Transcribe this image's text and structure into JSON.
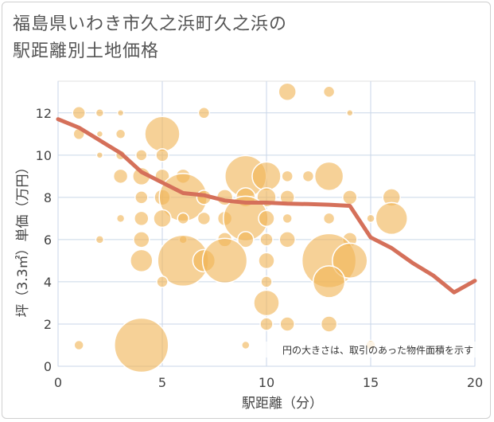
{
  "chart_data": {
    "type": "scatter",
    "title_line1": "福島県いわき市久之浜町久之浜の",
    "title_line2": "駅距離別土地価格",
    "xlabel": "駅距離（分）",
    "ylabel": "坪（3.3㎡）単価（万円）",
    "note": "円の大きさは、取引のあった物件面積を示す",
    "xlim": [
      0,
      20
    ],
    "ylim": [
      0,
      13.5
    ],
    "xticks": [
      "0",
      "5",
      "10",
      "15",
      "20"
    ],
    "yticks": [
      "0",
      "2",
      "4",
      "6",
      "8",
      "10",
      "12"
    ],
    "grid": true,
    "bubble_color": "#f0b457",
    "line_color": "#d5705a",
    "points": [
      {
        "x": 1,
        "y": 12,
        "s": 8
      },
      {
        "x": 2,
        "y": 12,
        "s": 5
      },
      {
        "x": 3,
        "y": 12,
        "s": 4
      },
      {
        "x": 1,
        "y": 11,
        "s": 7
      },
      {
        "x": 2,
        "y": 11,
        "s": 4
      },
      {
        "x": 3,
        "y": 11,
        "s": 6
      },
      {
        "x": 5,
        "y": 11,
        "s": 22
      },
      {
        "x": 7,
        "y": 12,
        "s": 7
      },
      {
        "x": 11,
        "y": 13,
        "s": 11
      },
      {
        "x": 13,
        "y": 13,
        "s": 7
      },
      {
        "x": 14,
        "y": 12,
        "s": 4
      },
      {
        "x": 2,
        "y": 10,
        "s": 4
      },
      {
        "x": 3,
        "y": 10,
        "s": 6
      },
      {
        "x": 4,
        "y": 10,
        "s": 7
      },
      {
        "x": 5,
        "y": 10,
        "s": 8
      },
      {
        "x": 3,
        "y": 9,
        "s": 9
      },
      {
        "x": 4,
        "y": 9,
        "s": 11
      },
      {
        "x": 5,
        "y": 9,
        "s": 9
      },
      {
        "x": 6,
        "y": 9,
        "s": 9
      },
      {
        "x": 4,
        "y": 8,
        "s": 8
      },
      {
        "x": 5,
        "y": 8,
        "s": 10
      },
      {
        "x": 6,
        "y": 8,
        "s": 30
      },
      {
        "x": 7,
        "y": 8,
        "s": 9
      },
      {
        "x": 8,
        "y": 8,
        "s": 10
      },
      {
        "x": 9,
        "y": 9,
        "s": 26
      },
      {
        "x": 9,
        "y": 8,
        "s": 12
      },
      {
        "x": 10,
        "y": 9,
        "s": 18
      },
      {
        "x": 10,
        "y": 8,
        "s": 12
      },
      {
        "x": 11,
        "y": 9,
        "s": 7
      },
      {
        "x": 11,
        "y": 8,
        "s": 9
      },
      {
        "x": 12,
        "y": 9,
        "s": 7
      },
      {
        "x": 13,
        "y": 9,
        "s": 18
      },
      {
        "x": 14,
        "y": 8,
        "s": 9
      },
      {
        "x": 3,
        "y": 7,
        "s": 5
      },
      {
        "x": 4,
        "y": 7,
        "s": 9
      },
      {
        "x": 5,
        "y": 7,
        "s": 11
      },
      {
        "x": 6,
        "y": 7,
        "s": 7
      },
      {
        "x": 7,
        "y": 7,
        "s": 8
      },
      {
        "x": 8,
        "y": 7,
        "s": 9
      },
      {
        "x": 9,
        "y": 7,
        "s": 28
      },
      {
        "x": 10,
        "y": 7,
        "s": 10
      },
      {
        "x": 11,
        "y": 7,
        "s": 6
      },
      {
        "x": 13,
        "y": 7,
        "s": 7
      },
      {
        "x": 15,
        "y": 7,
        "s": 5
      },
      {
        "x": 16,
        "y": 8,
        "s": 11
      },
      {
        "x": 16,
        "y": 7,
        "s": 20
      },
      {
        "x": 2,
        "y": 6,
        "s": 5
      },
      {
        "x": 4,
        "y": 6,
        "s": 10
      },
      {
        "x": 6,
        "y": 6,
        "s": 5
      },
      {
        "x": 8,
        "y": 6,
        "s": 9
      },
      {
        "x": 9,
        "y": 6,
        "s": 10
      },
      {
        "x": 10,
        "y": 6,
        "s": 8
      },
      {
        "x": 11,
        "y": 6,
        "s": 10
      },
      {
        "x": 14,
        "y": 6,
        "s": 9
      },
      {
        "x": 4,
        "y": 5,
        "s": 14
      },
      {
        "x": 6,
        "y": 5,
        "s": 32
      },
      {
        "x": 7,
        "y": 5,
        "s": 14
      },
      {
        "x": 8,
        "y": 5,
        "s": 28
      },
      {
        "x": 10,
        "y": 5,
        "s": 10
      },
      {
        "x": 13,
        "y": 5,
        "s": 34
      },
      {
        "x": 14,
        "y": 5,
        "s": 22
      },
      {
        "x": 5,
        "y": 4,
        "s": 7
      },
      {
        "x": 10,
        "y": 4,
        "s": 7
      },
      {
        "x": 13,
        "y": 4,
        "s": 20
      },
      {
        "x": 10,
        "y": 3,
        "s": 16
      },
      {
        "x": 10,
        "y": 2,
        "s": 8
      },
      {
        "x": 11,
        "y": 2,
        "s": 9
      },
      {
        "x": 13,
        "y": 2,
        "s": 10
      },
      {
        "x": 1,
        "y": 1,
        "s": 6
      },
      {
        "x": 4,
        "y": 1,
        "s": 34
      },
      {
        "x": 9,
        "y": 1,
        "s": 5
      },
      {
        "x": 15,
        "y": 1,
        "s": 6
      }
    ],
    "series": [
      {
        "x": [
          0,
          1,
          2,
          3,
          4,
          5,
          6,
          7,
          8,
          9,
          10,
          11,
          12,
          13,
          14,
          15,
          16,
          17,
          18,
          19,
          20
        ],
        "values": [
          11.7,
          11.3,
          10.7,
          10.1,
          9.2,
          8.7,
          8.2,
          8.1,
          7.85,
          7.75,
          7.75,
          7.7,
          7.68,
          7.65,
          7.6,
          6.1,
          5.6,
          4.9,
          4.3,
          3.5,
          4.05
        ]
      }
    ]
  }
}
